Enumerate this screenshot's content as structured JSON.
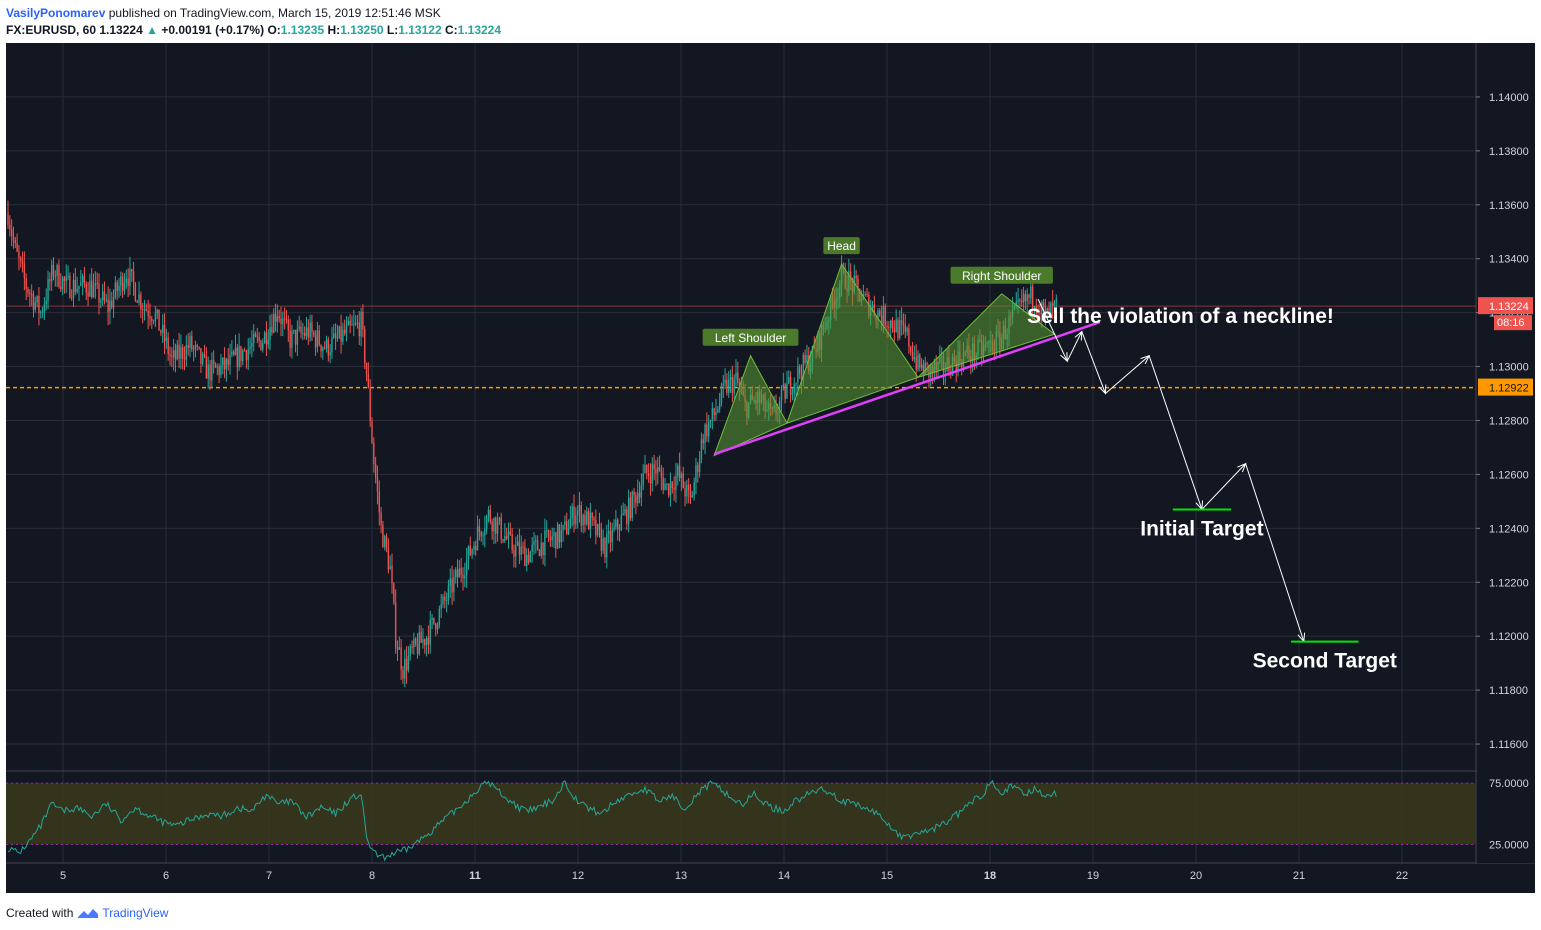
{
  "header": {
    "author": "VasilyPonomarev",
    "published_text": "published on TradingView.com, March 15, 2019 12:51:46 MSK",
    "symbol": "FX:EURUSD, 60",
    "last": "1.13224",
    "change": "+0.00191 (+0.17%)",
    "open_label": "O:",
    "open": "1.13235",
    "high_label": "H:",
    "high": "1.13250",
    "low_label": "L:",
    "low": "1.13122",
    "close_label": "C:",
    "close": "1.13224"
  },
  "footer": {
    "created_with": "Created with",
    "brand": "TradingView"
  },
  "colors": {
    "background": "#131722",
    "grid": "#2a2e39",
    "up": "#26a69a",
    "down": "#ef5350",
    "neckline": "#e040fb",
    "pattern_fill": "#5a9a32",
    "level": "#ff9800",
    "target": "#00e600",
    "rsi_band": "#3a3a1a",
    "rsi_line": "#26a69a"
  },
  "chart_data": {
    "type": "candlestick",
    "symbol": "FX:EURUSD",
    "interval": "60",
    "y_ticks": [
      "1.14000",
      "1.13800",
      "1.13600",
      "1.13400",
      "1.13200",
      "1.13000",
      "1.12800",
      "1.12600",
      "1.12400",
      "1.12200",
      "1.12000",
      "1.11800",
      "1.11600"
    ],
    "ylim": [
      1.115,
      1.142
    ],
    "x_ticks": [
      {
        "label": "5",
        "bold": false
      },
      {
        "label": "6",
        "bold": false
      },
      {
        "label": "7",
        "bold": false
      },
      {
        "label": "8",
        "bold": false
      },
      {
        "label": "11",
        "bold": true
      },
      {
        "label": "12",
        "bold": false
      },
      {
        "label": "13",
        "bold": false
      },
      {
        "label": "14",
        "bold": false
      },
      {
        "label": "15",
        "bold": false
      },
      {
        "label": "18",
        "bold": true
      },
      {
        "label": "19",
        "bold": false
      },
      {
        "label": "20",
        "bold": false
      },
      {
        "label": "21",
        "bold": false
      },
      {
        "label": "22",
        "bold": false
      }
    ],
    "last_price": {
      "value": 1.13224,
      "label": "1.13224",
      "countdown": "08:16"
    },
    "level_line": {
      "value": 1.12922,
      "label": "1.12922"
    },
    "price_path": [
      [
        0,
        1.1357
      ],
      [
        4,
        1.1343
      ],
      [
        10,
        1.133
      ],
      [
        18,
        1.132
      ],
      [
        25,
        1.1336
      ],
      [
        32,
        1.133
      ],
      [
        45,
        1.133
      ],
      [
        55,
        1.1322
      ],
      [
        65,
        1.1335
      ],
      [
        75,
        1.1322
      ],
      [
        80,
        1.132
      ],
      [
        86,
        1.131
      ],
      [
        90,
        1.1302
      ],
      [
        100,
        1.1308
      ],
      [
        110,
        1.1298
      ],
      [
        120,
        1.13
      ],
      [
        130,
        1.1306
      ],
      [
        140,
        1.131
      ],
      [
        148,
        1.1321
      ],
      [
        155,
        1.131
      ],
      [
        165,
        1.1313
      ],
      [
        175,
        1.1307
      ],
      [
        185,
        1.1312
      ],
      [
        194,
        1.1316
      ],
      [
        197,
        1.1298
      ],
      [
        201,
        1.1265
      ],
      [
        205,
        1.124
      ],
      [
        210,
        1.1225
      ],
      [
        213,
        1.12
      ],
      [
        217,
        1.1188
      ],
      [
        222,
        1.1194
      ],
      [
        230,
        1.12
      ],
      [
        238,
        1.121
      ],
      [
        245,
        1.122
      ],
      [
        252,
        1.1228
      ],
      [
        258,
        1.1238
      ],
      [
        264,
        1.1245
      ],
      [
        270,
        1.124
      ],
      [
        277,
        1.1233
      ],
      [
        285,
        1.123
      ],
      [
        295,
        1.1235
      ],
      [
        305,
        1.1238
      ],
      [
        312,
        1.1247
      ],
      [
        320,
        1.1242
      ],
      [
        328,
        1.1233
      ],
      [
        336,
        1.1242
      ],
      [
        342,
        1.1248
      ],
      [
        350,
        1.126
      ],
      [
        356,
        1.1262
      ],
      [
        362,
        1.1255
      ],
      [
        368,
        1.126
      ],
      [
        375,
        1.125
      ],
      [
        382,
        1.1275
      ],
      [
        388,
        1.1282
      ],
      [
        394,
        1.1292
      ],
      [
        400,
        1.1295
      ],
      [
        405,
        1.1285
      ],
      [
        412,
        1.1288
      ],
      [
        420,
        1.1281
      ],
      [
        428,
        1.1292
      ],
      [
        436,
        1.1299
      ],
      [
        443,
        1.1305
      ],
      [
        450,
        1.1318
      ],
      [
        458,
        1.1333
      ],
      [
        462,
        1.1332
      ],
      [
        470,
        1.1325
      ],
      [
        478,
        1.132
      ],
      [
        486,
        1.1316
      ],
      [
        494,
        1.1311
      ],
      [
        500,
        1.13
      ],
      [
        506,
        1.1298
      ],
      [
        515,
        1.13
      ],
      [
        525,
        1.1304
      ],
      [
        535,
        1.1306
      ],
      [
        545,
        1.131
      ],
      [
        552,
        1.1318
      ],
      [
        560,
        1.1325
      ],
      [
        564,
        1.1326
      ],
      [
        570,
        1.1318
      ],
      [
        576,
        1.1322
      ]
    ],
    "pattern": {
      "labels": [
        "Left Shoulder",
        "Head",
        "Right Shoulder"
      ],
      "left_shoulder": [
        [
          388,
          1.1267
        ],
        [
          408,
          1.1304
        ],
        [
          428,
          1.1279
        ]
      ],
      "head": [
        [
          428,
          1.1279
        ],
        [
          458,
          1.1338
        ],
        [
          500,
          1.1296
        ]
      ],
      "right_shoulder": [
        [
          500,
          1.1296
        ],
        [
          546,
          1.1327
        ],
        [
          575,
          1.1312
        ]
      ]
    },
    "neckline": [
      [
        388,
        1.12675
      ],
      [
        600,
        1.13165
      ]
    ],
    "projection": [
      [
        566,
        1.1325
      ],
      [
        582,
        1.1302
      ],
      [
        590,
        1.1313
      ],
      [
        603,
        1.129
      ],
      [
        627,
        1.1304
      ],
      [
        656,
        1.1247
      ],
      [
        680,
        1.1264
      ],
      [
        712,
        1.1198
      ]
    ],
    "targets": [
      {
        "label": "Initial Target",
        "value": 1.1247,
        "x_range": [
          640,
          672
        ]
      },
      {
        "label": "Second Target",
        "value": 1.1198,
        "x_range": [
          705,
          742
        ]
      }
    ],
    "annotation": "Sell the violation of a neckline!",
    "rsi": {
      "ticks": [
        "75.0000",
        "25.0000"
      ],
      "band": [
        25,
        75
      ],
      "ylim": [
        10,
        84
      ],
      "path": [
        [
          0,
          22
        ],
        [
          6,
          18
        ],
        [
          12,
          28
        ],
        [
          18,
          40
        ],
        [
          24,
          58
        ],
        [
          30,
          52
        ],
        [
          38,
          55
        ],
        [
          46,
          48
        ],
        [
          54,
          58
        ],
        [
          62,
          45
        ],
        [
          70,
          55
        ],
        [
          78,
          48
        ],
        [
          84,
          44
        ],
        [
          92,
          40
        ],
        [
          100,
          45
        ],
        [
          110,
          50
        ],
        [
          118,
          48
        ],
        [
          126,
          55
        ],
        [
          134,
          52
        ],
        [
          142,
          66
        ],
        [
          148,
          58
        ],
        [
          156,
          60
        ],
        [
          164,
          47
        ],
        [
          172,
          55
        ],
        [
          180,
          50
        ],
        [
          188,
          62
        ],
        [
          194,
          66
        ],
        [
          197,
          30
        ],
        [
          201,
          18
        ],
        [
          206,
          14
        ],
        [
          212,
          18
        ],
        [
          218,
          20
        ],
        [
          226,
          28
        ],
        [
          234,
          38
        ],
        [
          242,
          48
        ],
        [
          250,
          58
        ],
        [
          258,
          70
        ],
        [
          264,
          76
        ],
        [
          270,
          68
        ],
        [
          276,
          60
        ],
        [
          284,
          52
        ],
        [
          292,
          55
        ],
        [
          300,
          62
        ],
        [
          306,
          76
        ],
        [
          312,
          62
        ],
        [
          318,
          55
        ],
        [
          326,
          50
        ],
        [
          334,
          60
        ],
        [
          342,
          66
        ],
        [
          350,
          70
        ],
        [
          358,
          60
        ],
        [
          364,
          65
        ],
        [
          372,
          55
        ],
        [
          380,
          68
        ],
        [
          386,
          74
        ],
        [
          392,
          70
        ],
        [
          398,
          62
        ],
        [
          404,
          58
        ],
        [
          410,
          66
        ],
        [
          418,
          56
        ],
        [
          426,
          52
        ],
        [
          432,
          60
        ],
        [
          440,
          66
        ],
        [
          446,
          70
        ],
        [
          452,
          68
        ],
        [
          458,
          60
        ],
        [
          464,
          58
        ],
        [
          470,
          55
        ],
        [
          478,
          50
        ],
        [
          486,
          38
        ],
        [
          492,
          30
        ],
        [
          498,
          34
        ],
        [
          506,
          36
        ],
        [
          514,
          42
        ],
        [
          522,
          50
        ],
        [
          530,
          60
        ],
        [
          536,
          66
        ],
        [
          540,
          78
        ],
        [
          546,
          68
        ],
        [
          552,
          72
        ],
        [
          558,
          66
        ],
        [
          564,
          70
        ],
        [
          570,
          66
        ]
      ]
    }
  }
}
